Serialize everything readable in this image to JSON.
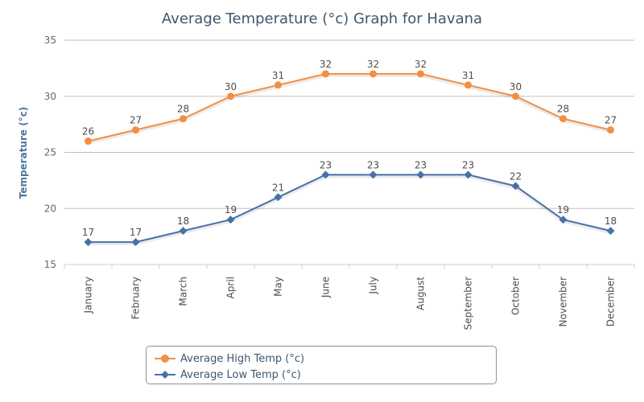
{
  "chart_data": {
    "type": "line",
    "title": "Average Temperature (°c) Graph for Havana",
    "ylabel": "Temperature (°c)",
    "xlabel": "",
    "categories": [
      "January",
      "February",
      "March",
      "April",
      "May",
      "June",
      "July",
      "August",
      "September",
      "October",
      "November",
      "December"
    ],
    "ylim": [
      15,
      35
    ],
    "yticks": [
      "15",
      "20",
      "25",
      "30",
      "35"
    ],
    "grid": true,
    "legend_position": "bottom",
    "series": [
      {
        "name": "Average High Temp (°c)",
        "color": "#f28f43",
        "marker": "circle",
        "values": [
          26,
          27,
          28,
          30,
          31,
          32,
          32,
          32,
          31,
          30,
          28,
          27
        ]
      },
      {
        "name": "Average Low Temp (°c)",
        "color": "#4572a7",
        "marker": "diamond",
        "values": [
          17,
          17,
          18,
          19,
          21,
          23,
          23,
          23,
          23,
          22,
          19,
          18
        ]
      }
    ]
  }
}
